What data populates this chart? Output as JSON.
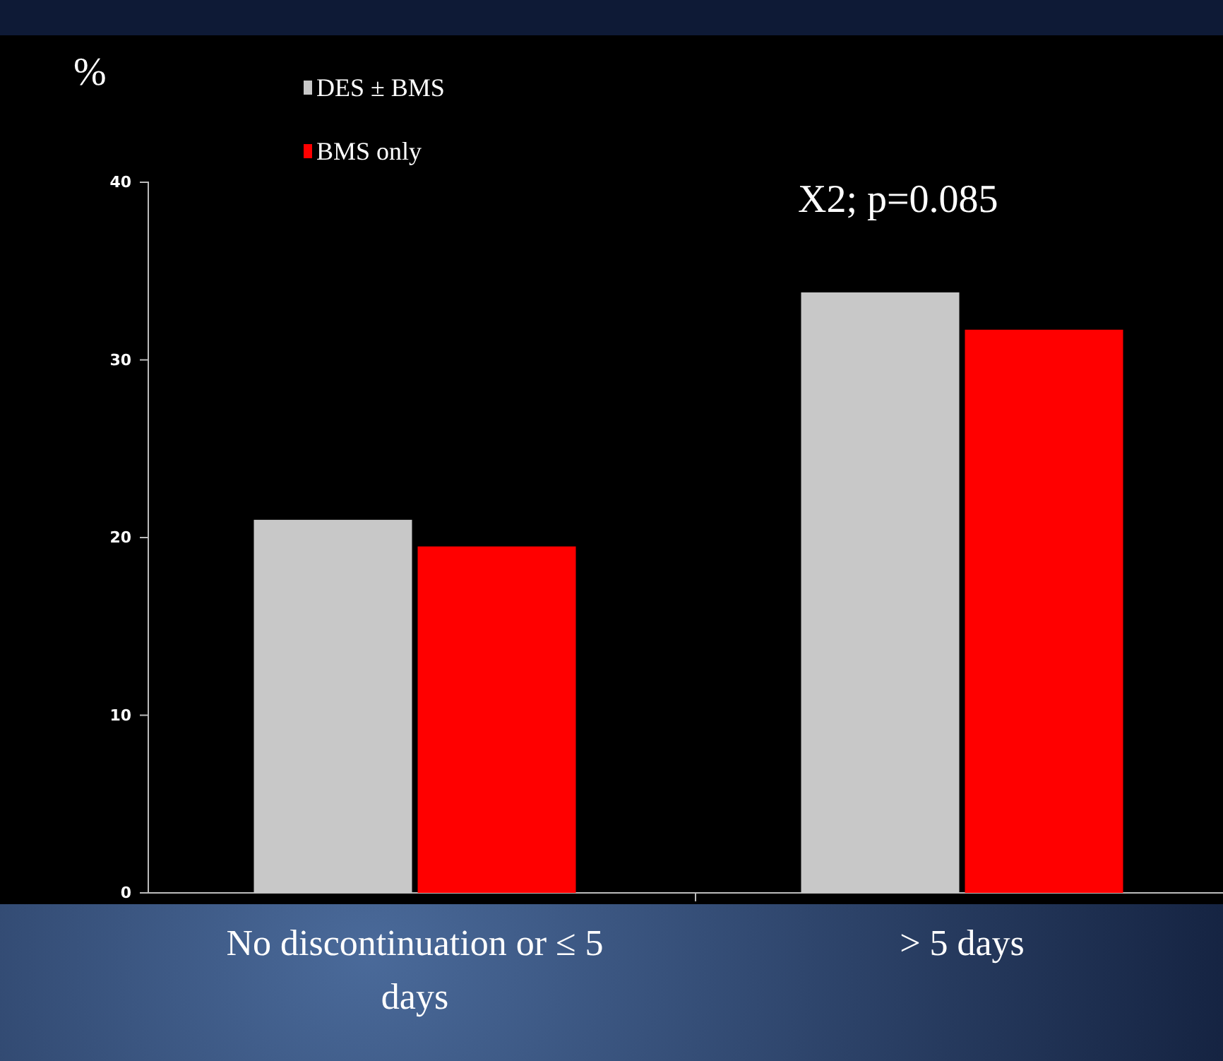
{
  "chart_data": {
    "type": "bar",
    "ylabel": "%",
    "categories": [
      "No discontinuation or ≤ 5 days",
      "> 5 days"
    ],
    "series": [
      {
        "name": "DES ± BMS",
        "color": "#c8c8c8",
        "values": [
          21.0,
          33.8
        ]
      },
      {
        "name": "BMS only",
        "color": "#ff0000",
        "values": [
          19.5,
          31.7
        ]
      }
    ],
    "ylim": [
      0,
      40
    ],
    "yticks": [
      0,
      10,
      20,
      30,
      40
    ],
    "grid": false,
    "legend": "top left",
    "annotations": [
      "X2; p=0.085"
    ]
  }
}
